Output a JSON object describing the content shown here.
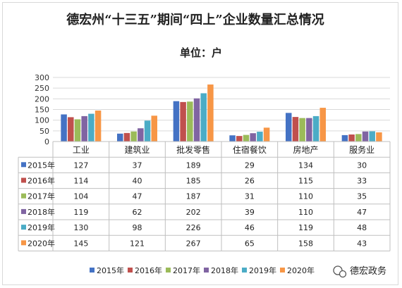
{
  "chart_data": {
    "type": "bar",
    "title": "德宏州“十三五”期间“四上”企业数量汇总情况",
    "subtitle": "单位：户",
    "categories": [
      "工业",
      "建筑业",
      "批发零售",
      "住宿餐饮",
      "房地产",
      "服务业"
    ],
    "series": [
      {
        "name": "2015年",
        "color": "#4472c4",
        "values": [
          127,
          37,
          189,
          29,
          134,
          30
        ]
      },
      {
        "name": "2016年",
        "color": "#c0504d",
        "values": [
          114,
          40,
          185,
          26,
          115,
          33
        ]
      },
      {
        "name": "2017年",
        "color": "#9bbb59",
        "values": [
          104,
          47,
          187,
          31,
          110,
          35
        ]
      },
      {
        "name": "2018年",
        "color": "#8064a2",
        "values": [
          119,
          62,
          202,
          39,
          110,
          47
        ]
      },
      {
        "name": "2019年",
        "color": "#4bacc6",
        "values": [
          130,
          98,
          226,
          46,
          119,
          48
        ]
      },
      {
        "name": "2020年",
        "color": "#f79646",
        "values": [
          145,
          121,
          267,
          65,
          158,
          43
        ]
      }
    ],
    "ylim": [
      0,
      300
    ],
    "yticks": [
      0,
      50,
      100,
      150,
      200,
      250,
      300
    ],
    "grid": true,
    "data_table": true,
    "legend": "bottom"
  },
  "watermark": "德宏政务"
}
